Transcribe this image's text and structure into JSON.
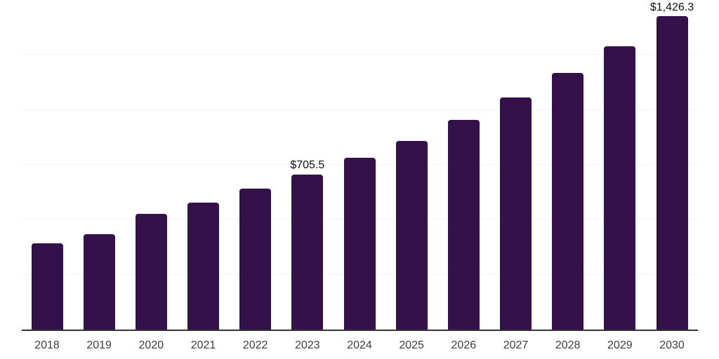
{
  "chart_data": {
    "type": "bar",
    "title": "",
    "xlabel": "",
    "ylabel": "",
    "categories": [
      "2018",
      "2019",
      "2020",
      "2021",
      "2022",
      "2023",
      "2024",
      "2025",
      "2026",
      "2027",
      "2028",
      "2029",
      "2030"
    ],
    "values": [
      393,
      434,
      527,
      578,
      641,
      705.5,
      782,
      859,
      954,
      1056,
      1168,
      1289,
      1426.3
    ],
    "data_labels": {
      "2023": "$705.5",
      "2030": "$1,426.3"
    },
    "ylim": [
      0,
      1500
    ],
    "gridline_step": 250,
    "grid": "horizontal",
    "legend": "none",
    "y_tick_labels_visible": false,
    "bar_color": "#351149",
    "axis_color": "#333333",
    "gridline_color": "#f4f4f4",
    "tick_label_color": "#3d3d3d",
    "value_label_color": "#0f0f0f"
  }
}
